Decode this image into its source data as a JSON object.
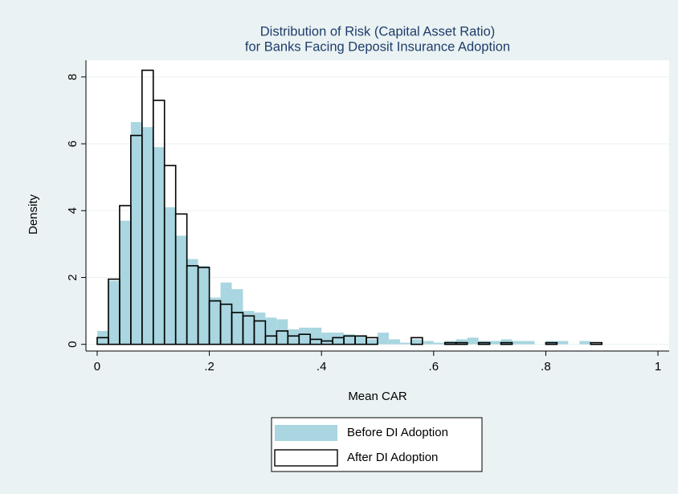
{
  "chart_data": {
    "type": "histogram",
    "title": [
      "Distribution of Risk (Capital Asset Ratio)",
      "for Banks Facing Deposit Insurance Adoption"
    ],
    "xlabel": "Mean CAR",
    "ylabel": "Density",
    "bins": [
      0,
      0.02,
      0.04,
      0.06,
      0.08,
      0.1,
      0.12,
      0.14,
      0.16,
      0.18,
      0.2,
      0.22,
      0.24,
      0.26,
      0.28,
      0.3,
      0.32,
      0.34,
      0.36,
      0.38,
      0.4,
      0.42,
      0.44,
      0.46,
      0.48,
      0.5,
      0.52,
      0.54,
      0.56,
      0.58,
      0.6,
      0.62,
      0.64,
      0.66,
      0.68,
      0.7,
      0.72,
      0.74,
      0.76,
      0.78,
      0.8,
      0.82,
      0.84,
      0.86,
      0.88,
      0.9
    ],
    "series": [
      {
        "name": "Before DI Adoption",
        "color": "#a9d6e0",
        "fill": true,
        "values": [
          0.4,
          1.9,
          3.7,
          6.65,
          6.5,
          5.9,
          4.1,
          3.25,
          2.55,
          2.35,
          1.4,
          1.85,
          1.65,
          1.0,
          0.95,
          0.8,
          0.75,
          0.45,
          0.5,
          0.5,
          0.35,
          0.35,
          0.3,
          0.25,
          0.15,
          0.35,
          0.15,
          0.05,
          0.15,
          0.1,
          0.05,
          0.1,
          0.15,
          0.2,
          0.1,
          0.1,
          0.15,
          0.1,
          0.1,
          0,
          0.1,
          0.1,
          0,
          0.1,
          0
        ]
      },
      {
        "name": "After DI Adoption",
        "color": "#000000",
        "fill": false,
        "values": [
          0.2,
          1.95,
          4.15,
          6.25,
          8.2,
          7.3,
          5.35,
          3.9,
          2.35,
          2.3,
          1.3,
          1.2,
          0.95,
          0.85,
          0.7,
          0.25,
          0.4,
          0.25,
          0.3,
          0.15,
          0.1,
          0.2,
          0.25,
          0.25,
          0.2,
          0,
          0,
          0,
          0.2,
          0,
          0,
          0.05,
          0.05,
          0,
          0.05,
          0,
          0.05,
          0,
          0,
          0,
          0.05,
          0,
          0,
          0,
          0.05
        ]
      }
    ],
    "xlim": [
      -0.02,
      1.02
    ],
    "ylim": [
      -0.2,
      8.5
    ],
    "xticks": [
      0,
      {
        "value": 0.2,
        "label": ".2"
      },
      {
        "value": 0.4,
        "label": ".4"
      },
      {
        "value": 0.6,
        "label": ".6"
      },
      {
        "value": 0.8,
        "label": ".8"
      },
      1
    ],
    "yticks": [
      0,
      2,
      4,
      6,
      8
    ],
    "grid": true,
    "legend": "bottom"
  }
}
